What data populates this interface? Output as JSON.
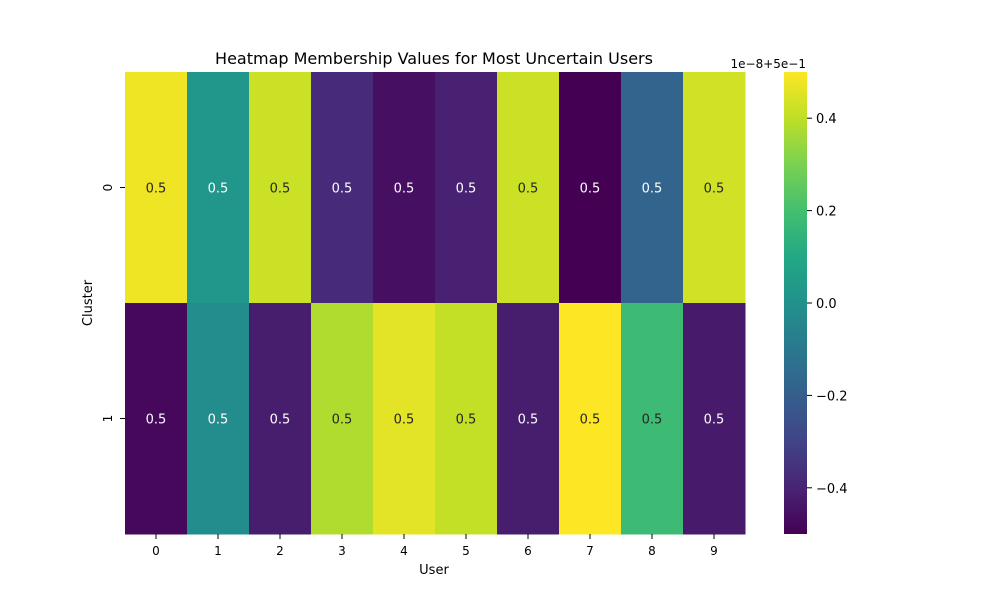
{
  "chart_data": {
    "type": "heatmap",
    "title": "Heatmap Membership Values for Most Uncertain Users",
    "xlabel": "User",
    "ylabel": "Cluster",
    "x_categories": [
      "0",
      "1",
      "2",
      "3",
      "4",
      "5",
      "6",
      "7",
      "8",
      "9"
    ],
    "y_categories": [
      "0",
      "1"
    ],
    "values": [
      [
        0.48,
        0.02,
        0.42,
        -0.38,
        -0.46,
        -0.41,
        0.42,
        -0.5,
        -0.18,
        0.43
      ],
      [
        -0.48,
        -0.02,
        -0.42,
        0.38,
        0.46,
        0.41,
        -0.42,
        0.5,
        0.18,
        -0.43
      ]
    ],
    "value_unit_note": "values are deviations from 0.5 in units of 1e-8",
    "annotations": [
      [
        "0.5",
        "0.5",
        "0.5",
        "0.5",
        "0.5",
        "0.5",
        "0.5",
        "0.5",
        "0.5",
        "0.5"
      ],
      [
        "0.5",
        "0.5",
        "0.5",
        "0.5",
        "0.5",
        "0.5",
        "0.5",
        "0.5",
        "0.5",
        "0.5"
      ]
    ],
    "colormap": "viridis",
    "colorbar": {
      "range": [
        -0.5,
        0.5
      ],
      "ticks": [
        -0.4,
        -0.2,
        0.0,
        0.2,
        0.4
      ],
      "tick_labels": [
        "−0.4",
        "−0.2",
        "0.0",
        "0.2",
        "0.4"
      ],
      "offset_text": "1e−8+5e−1"
    }
  }
}
